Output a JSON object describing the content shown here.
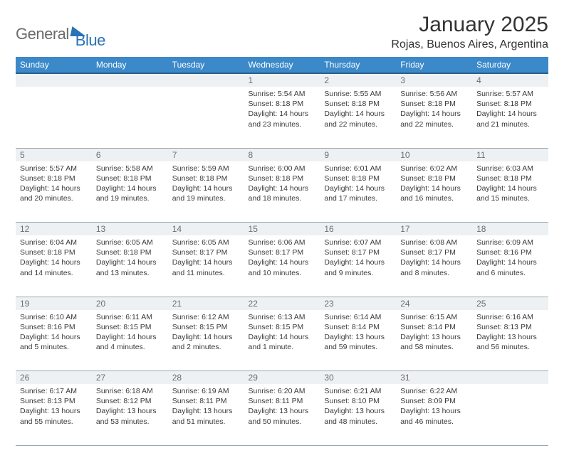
{
  "logo": {
    "part1": "General",
    "part2": "Blue"
  },
  "title": "January 2025",
  "location": "Rojas, Buenos Aires, Argentina",
  "colors": {
    "header_bg": "#3b89c9",
    "header_border": "#2a5d8a",
    "daynum_bg": "#eef1f3",
    "daynum_text": "#6a6f73",
    "cell_border": "#9aa7b0",
    "logo_gray": "#6b6b6b",
    "logo_blue": "#2a72b5",
    "body_text": "#3a3a3a"
  },
  "day_headers": [
    "Sunday",
    "Monday",
    "Tuesday",
    "Wednesday",
    "Thursday",
    "Friday",
    "Saturday"
  ],
  "weeks": [
    [
      null,
      null,
      null,
      {
        "n": "1",
        "sr": "5:54 AM",
        "ss": "8:18 PM",
        "dl": "14 hours and 23 minutes."
      },
      {
        "n": "2",
        "sr": "5:55 AM",
        "ss": "8:18 PM",
        "dl": "14 hours and 22 minutes."
      },
      {
        "n": "3",
        "sr": "5:56 AM",
        "ss": "8:18 PM",
        "dl": "14 hours and 22 minutes."
      },
      {
        "n": "4",
        "sr": "5:57 AM",
        "ss": "8:18 PM",
        "dl": "14 hours and 21 minutes."
      }
    ],
    [
      {
        "n": "5",
        "sr": "5:57 AM",
        "ss": "8:18 PM",
        "dl": "14 hours and 20 minutes."
      },
      {
        "n": "6",
        "sr": "5:58 AM",
        "ss": "8:18 PM",
        "dl": "14 hours and 19 minutes."
      },
      {
        "n": "7",
        "sr": "5:59 AM",
        "ss": "8:18 PM",
        "dl": "14 hours and 19 minutes."
      },
      {
        "n": "8",
        "sr": "6:00 AM",
        "ss": "8:18 PM",
        "dl": "14 hours and 18 minutes."
      },
      {
        "n": "9",
        "sr": "6:01 AM",
        "ss": "8:18 PM",
        "dl": "14 hours and 17 minutes."
      },
      {
        "n": "10",
        "sr": "6:02 AM",
        "ss": "8:18 PM",
        "dl": "14 hours and 16 minutes."
      },
      {
        "n": "11",
        "sr": "6:03 AM",
        "ss": "8:18 PM",
        "dl": "14 hours and 15 minutes."
      }
    ],
    [
      {
        "n": "12",
        "sr": "6:04 AM",
        "ss": "8:18 PM",
        "dl": "14 hours and 14 minutes."
      },
      {
        "n": "13",
        "sr": "6:05 AM",
        "ss": "8:18 PM",
        "dl": "14 hours and 13 minutes."
      },
      {
        "n": "14",
        "sr": "6:05 AM",
        "ss": "8:17 PM",
        "dl": "14 hours and 11 minutes."
      },
      {
        "n": "15",
        "sr": "6:06 AM",
        "ss": "8:17 PM",
        "dl": "14 hours and 10 minutes."
      },
      {
        "n": "16",
        "sr": "6:07 AM",
        "ss": "8:17 PM",
        "dl": "14 hours and 9 minutes."
      },
      {
        "n": "17",
        "sr": "6:08 AM",
        "ss": "8:17 PM",
        "dl": "14 hours and 8 minutes."
      },
      {
        "n": "18",
        "sr": "6:09 AM",
        "ss": "8:16 PM",
        "dl": "14 hours and 6 minutes."
      }
    ],
    [
      {
        "n": "19",
        "sr": "6:10 AM",
        "ss": "8:16 PM",
        "dl": "14 hours and 5 minutes."
      },
      {
        "n": "20",
        "sr": "6:11 AM",
        "ss": "8:15 PM",
        "dl": "14 hours and 4 minutes."
      },
      {
        "n": "21",
        "sr": "6:12 AM",
        "ss": "8:15 PM",
        "dl": "14 hours and 2 minutes."
      },
      {
        "n": "22",
        "sr": "6:13 AM",
        "ss": "8:15 PM",
        "dl": "14 hours and 1 minute."
      },
      {
        "n": "23",
        "sr": "6:14 AM",
        "ss": "8:14 PM",
        "dl": "13 hours and 59 minutes."
      },
      {
        "n": "24",
        "sr": "6:15 AM",
        "ss": "8:14 PM",
        "dl": "13 hours and 58 minutes."
      },
      {
        "n": "25",
        "sr": "6:16 AM",
        "ss": "8:13 PM",
        "dl": "13 hours and 56 minutes."
      }
    ],
    [
      {
        "n": "26",
        "sr": "6:17 AM",
        "ss": "8:13 PM",
        "dl": "13 hours and 55 minutes."
      },
      {
        "n": "27",
        "sr": "6:18 AM",
        "ss": "8:12 PM",
        "dl": "13 hours and 53 minutes."
      },
      {
        "n": "28",
        "sr": "6:19 AM",
        "ss": "8:11 PM",
        "dl": "13 hours and 51 minutes."
      },
      {
        "n": "29",
        "sr": "6:20 AM",
        "ss": "8:11 PM",
        "dl": "13 hours and 50 minutes."
      },
      {
        "n": "30",
        "sr": "6:21 AM",
        "ss": "8:10 PM",
        "dl": "13 hours and 48 minutes."
      },
      {
        "n": "31",
        "sr": "6:22 AM",
        "ss": "8:09 PM",
        "dl": "13 hours and 46 minutes."
      },
      null
    ]
  ],
  "labels": {
    "sunrise": "Sunrise:",
    "sunset": "Sunset:",
    "daylight": "Daylight:"
  }
}
